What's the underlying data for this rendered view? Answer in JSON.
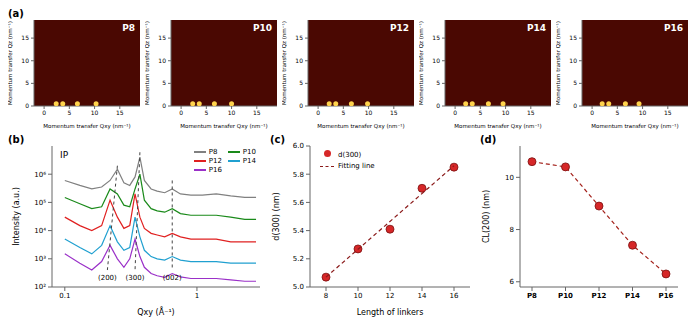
{
  "chart_data": [
    {
      "type": "image",
      "panel_label": "(a)",
      "title": "P8",
      "xlabel": "Momentum transfer Qxy (nm⁻¹)",
      "ylabel": "Momentum transfer Qz (nm⁻¹)",
      "xlim": [
        -2,
        19
      ],
      "ylim": [
        0,
        19
      ],
      "xticks": [
        0,
        5,
        10,
        15
      ],
      "yticks": [
        0,
        5,
        10,
        15
      ],
      "points": {
        "x": [
          2.4,
          3.7,
          6.6,
          10.3
        ],
        "y": [
          0.5,
          0.5,
          0.5,
          0.5
        ]
      }
    },
    {
      "type": "image",
      "title": "P10",
      "xlabel": "Momentum transfer Qxy (nm⁻¹)",
      "ylabel": "Momentum transfer Qz (nm⁻¹)",
      "xlim": [
        -2,
        19
      ],
      "ylim": [
        0,
        19
      ],
      "xticks": [
        0,
        5,
        10,
        15
      ],
      "yticks": [
        0,
        5,
        10,
        15
      ],
      "points": {
        "x": [
          2.3,
          3.6,
          6.6,
          10.0
        ],
        "y": [
          0.5,
          0.5,
          0.5,
          0.5
        ]
      }
    },
    {
      "type": "image",
      "title": "P12",
      "xlabel": "Momentum transfer Qxy (nm⁻¹)",
      "ylabel": "Momentum transfer Qz (nm⁻¹)",
      "xlim": [
        -2,
        19
      ],
      "ylim": [
        0,
        19
      ],
      "xticks": [
        0,
        5,
        10,
        15
      ],
      "yticks": [
        0,
        5,
        10,
        15
      ],
      "points": {
        "x": [
          2.2,
          3.5,
          6.6,
          9.8
        ],
        "y": [
          0.5,
          0.5,
          0.5,
          0.5
        ]
      }
    },
    {
      "type": "image",
      "title": "P14",
      "xlabel": "Momentum transfer Qxy (nm⁻¹)",
      "ylabel": "Momentum transfer Qz (nm⁻¹)",
      "xlim": [
        -2,
        19
      ],
      "ylim": [
        0,
        19
      ],
      "xticks": [
        0,
        5,
        10,
        15
      ],
      "yticks": [
        0,
        5,
        10,
        15
      ],
      "points": {
        "x": [
          2.1,
          3.4,
          6.6,
          9.5
        ],
        "y": [
          0.5,
          0.5,
          0.5,
          0.5
        ]
      }
    },
    {
      "type": "image",
      "title": "P16",
      "xlabel": "Momentum transfer Qxy (nm⁻¹)",
      "ylabel": "Momentum transfer Qz (nm⁻¹)",
      "xlim": [
        -2,
        19
      ],
      "ylim": [
        0,
        19
      ],
      "xticks": [
        0,
        5,
        10,
        15
      ],
      "yticks": [
        0,
        5,
        10,
        15
      ],
      "points": {
        "x": [
          2.0,
          3.3,
          6.6,
          9.3
        ],
        "y": [
          0.5,
          0.5,
          0.5,
          0.5
        ]
      }
    },
    {
      "type": "line",
      "panel_label": "(b)",
      "annotation": "IP",
      "xlabel": "Qxy (Å⁻¹)",
      "ylabel": "Intensity (a.u.)",
      "log": true,
      "legend": "upper right",
      "xlim": [
        0.08,
        3
      ],
      "ylim": [
        100,
        10000000
      ],
      "xticks": [
        0.1,
        1
      ],
      "yticks": [
        {
          "value": 100,
          "label": "10²"
        },
        {
          "value": 1000,
          "label": "10³"
        },
        {
          "value": 10000,
          "label": "10⁴"
        },
        {
          "value": 100000,
          "label": "10⁵"
        },
        {
          "value": 1000000,
          "label": "10⁶"
        }
      ],
      "x": [
        0.1,
        0.13,
        0.16,
        0.19,
        0.22,
        0.25,
        0.28,
        0.31,
        0.34,
        0.37,
        0.4,
        0.45,
        0.5,
        0.57,
        0.65,
        0.75,
        0.9,
        1.1,
        1.4,
        1.8,
        2.3,
        2.8
      ],
      "series": [
        {
          "name": "P8",
          "color": "#808080",
          "values": [
            600000,
            400000,
            300000,
            350000,
            600000,
            1500000,
            500000,
            400000,
            800000,
            4000000,
            600000,
            300000,
            250000,
            220000,
            300000,
            200000,
            180000,
            180000,
            200000,
            170000,
            150000,
            150000
          ]
        },
        {
          "name": "P10",
          "color": "#1a8a1a",
          "values": [
            150000,
            90000,
            60000,
            70000,
            300000,
            200000,
            80000,
            70000,
            300000,
            1000000,
            120000,
            60000,
            50000,
            45000,
            60000,
            40000,
            35000,
            35000,
            35000,
            30000,
            25000,
            25000
          ]
        },
        {
          "name": "P12",
          "color": "#e02020",
          "values": [
            30000,
            15000,
            10000,
            15000,
            120000,
            30000,
            12000,
            15000,
            200000,
            30000,
            12000,
            8000,
            7000,
            6000,
            8000,
            6000,
            5000,
            5000,
            5000,
            4000,
            4000,
            4000
          ]
        },
        {
          "name": "P14",
          "color": "#20a0d0",
          "values": [
            5000,
            2500,
            1500,
            3000,
            15000,
            4000,
            2000,
            2500,
            30000,
            6000,
            2000,
            1200,
            1000,
            900,
            1200,
            900,
            800,
            800,
            800,
            700,
            700,
            700
          ]
        },
        {
          "name": "P16",
          "color": "#9a30c8",
          "values": [
            1500,
            700,
            400,
            800,
            3000,
            1000,
            500,
            1000,
            5000,
            1200,
            500,
            300,
            250,
            220,
            300,
            230,
            200,
            200,
            200,
            180,
            160,
            160
          ]
        }
      ],
      "peak_lines": [
        {
          "label": "(200)",
          "x": [
            0.25,
            0.21
          ],
          "y": [
            2000000,
            400
          ]
        },
        {
          "label": "(300)",
          "x": [
            0.37,
            0.34
          ],
          "y": [
            6000000,
            400
          ]
        },
        {
          "label": "(002)",
          "x": [
            0.65,
            0.65
          ],
          "y": [
            600000,
            400
          ]
        }
      ]
    },
    {
      "type": "scatter",
      "panel_label": "(c)",
      "xlabel": "Length of linkers",
      "ylabel": "d(300) (nm)",
      "legend": "upper left",
      "xlim": [
        7,
        17
      ],
      "ylim": [
        5.0,
        6.0
      ],
      "xticks": [
        8,
        10,
        12,
        14,
        16
      ],
      "yticks": [
        {
          "value": 5.0,
          "label": "5.0"
        },
        5.2,
        5.4,
        5.6,
        5.8,
        {
          "value": 6.0,
          "label": "6.0"
        }
      ],
      "series": [
        {
          "name": "d(300)",
          "type": "scatter",
          "color": "#d62728",
          "marker": "circle",
          "x": [
            8,
            10,
            12,
            14,
            16
          ],
          "values": [
            5.07,
            5.27,
            5.41,
            5.7,
            5.85
          ]
        },
        {
          "name": "Fitting line",
          "type": "line",
          "line_style": "dashed",
          "color": "#8b1a1a",
          "x": [
            8,
            16
          ],
          "values": [
            5.07,
            5.86
          ]
        }
      ]
    },
    {
      "type": "line",
      "panel_label": "(d)",
      "ylabel": "CL(200) (nm)",
      "categories": [
        "P8",
        "P10",
        "P12",
        "P14",
        "P16"
      ],
      "ylim": [
        5.8,
        11.2
      ],
      "yticks": [
        6,
        8,
        10
      ],
      "values": [
        10.6,
        10.4,
        8.9,
        7.4,
        6.3
      ],
      "color": "#a3201a",
      "marker": "circle",
      "line_style": "dashed"
    }
  ]
}
